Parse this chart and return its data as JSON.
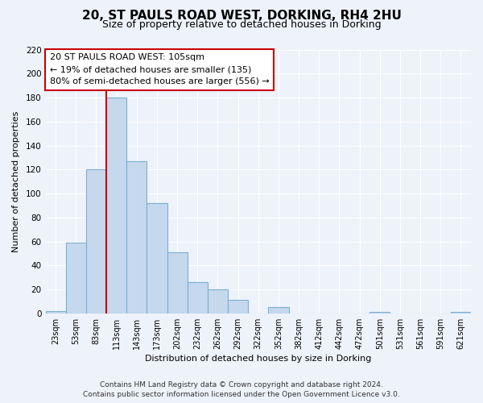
{
  "title": "20, ST PAULS ROAD WEST, DORKING, RH4 2HU",
  "subtitle": "Size of property relative to detached houses in Dorking",
  "xlabel": "Distribution of detached houses by size in Dorking",
  "ylabel": "Number of detached properties",
  "bar_labels": [
    "23sqm",
    "53sqm",
    "83sqm",
    "113sqm",
    "143sqm",
    "173sqm",
    "202sqm",
    "232sqm",
    "262sqm",
    "292sqm",
    "322sqm",
    "352sqm",
    "382sqm",
    "412sqm",
    "442sqm",
    "472sqm",
    "501sqm",
    "531sqm",
    "561sqm",
    "591sqm",
    "621sqm"
  ],
  "bar_values": [
    2,
    59,
    120,
    180,
    127,
    92,
    51,
    26,
    20,
    11,
    0,
    5,
    0,
    0,
    0,
    0,
    1,
    0,
    0,
    0,
    1
  ],
  "bar_color": "#c5d8ed",
  "bar_edge_color": "#7bafd4",
  "subject_label": "20 ST PAULS ROAD WEST: 105sqm",
  "annotation_line1": "← 19% of detached houses are smaller (135)",
  "annotation_line2": "80% of semi-detached houses are larger (556) →",
  "vline_color": "#cc0000",
  "bg_color": "#eef2fb",
  "grid_color": "#ffffff",
  "ylim": [
    0,
    220
  ],
  "yticks": [
    0,
    20,
    40,
    60,
    80,
    100,
    120,
    140,
    160,
    180,
    200,
    220
  ],
  "footer_line1": "Contains HM Land Registry data © Crown copyright and database right 2024.",
  "footer_line2": "Contains public sector information licensed under the Open Government Licence v3.0.",
  "title_fontsize": 11,
  "subtitle_fontsize": 9,
  "annot_fontsize": 8,
  "tick_fontsize": 7,
  "axis_label_fontsize": 8,
  "footer_fontsize": 6.5
}
